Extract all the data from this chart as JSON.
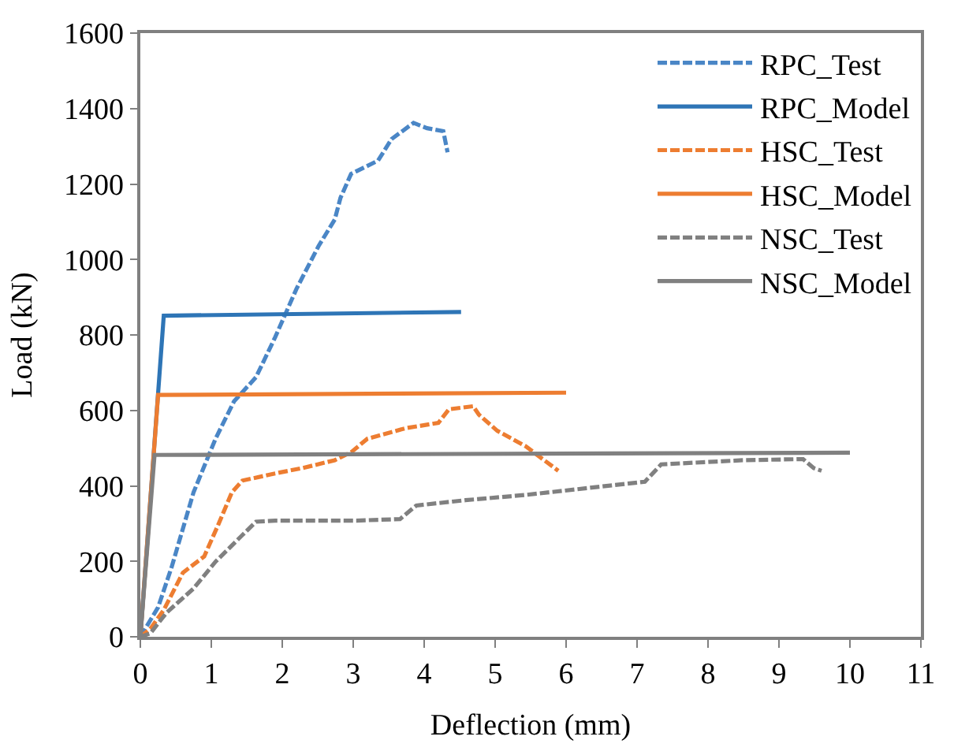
{
  "chart_data": {
    "type": "line",
    "xlabel": "Deflection (mm)",
    "ylabel": "Load (kN)",
    "xlim": [
      0,
      11
    ],
    "xticks": [
      0,
      1,
      2,
      3,
      4,
      5,
      6,
      7,
      8,
      9,
      10,
      11
    ],
    "ylim": [
      0,
      1600
    ],
    "yticks": [
      0,
      200,
      400,
      600,
      800,
      1000,
      1200,
      1400,
      1600
    ],
    "legend": "top right",
    "marker": "none",
    "series": [
      {
        "name": "RPC_Test",
        "color": "#4a86c6",
        "line_style": "dashed",
        "x": [
          0,
          0.25,
          0.44,
          0.75,
          1.06,
          1.32,
          1.63,
          1.9,
          2.2,
          2.51,
          2.74,
          2.82,
          2.97,
          3.35,
          3.54,
          3.85,
          4.04,
          4.27,
          4.33
        ],
        "values": [
          0,
          78,
          184,
          383,
          525,
          624,
          688,
          794,
          922,
          1035,
          1106,
          1163,
          1227,
          1262,
          1319,
          1362,
          1348,
          1340,
          1284
        ]
      },
      {
        "name": "RPC_Model",
        "color": "#2e75b6",
        "line_style": "solid",
        "x": [
          0,
          0.33,
          4.52
        ],
        "values": [
          0,
          851,
          861
        ]
      },
      {
        "name": "HSC_Test",
        "color": "#ed7d31",
        "line_style": "dashed",
        "x": [
          0,
          0.14,
          0.33,
          0.6,
          0.9,
          1.1,
          1.29,
          1.44,
          1.9,
          2.28,
          2.74,
          2.97,
          3.2,
          3.74,
          4.2,
          4.35,
          4.69,
          4.77,
          5.03,
          5.43,
          5.89
        ],
        "values": [
          0,
          21,
          71,
          170,
          213,
          298,
          383,
          414,
          433,
          447,
          468,
          489,
          525,
          553,
          567,
          603,
          611,
          589,
          546,
          505,
          440
        ]
      },
      {
        "name": "HSC_Model",
        "color": "#ed7d31",
        "line_style": "solid",
        "x": [
          0,
          0.25,
          6.0
        ],
        "values": [
          0,
          641,
          647
        ]
      },
      {
        "name": "NSC_Test",
        "color": "#808080",
        "line_style": "dashed",
        "x": [
          0,
          0.14,
          0.37,
          0.75,
          1.06,
          1.44,
          1.63,
          1.9,
          3.05,
          3.66,
          3.89,
          4.58,
          5.43,
          7.11,
          7.34,
          8.49,
          9.34,
          9.49,
          9.6
        ],
        "values": [
          0,
          9,
          64,
          128,
          199,
          270,
          305,
          308,
          308,
          312,
          348,
          362,
          376,
          411,
          457,
          468,
          471,
          447,
          440
        ]
      },
      {
        "name": "NSC_Model",
        "color": "#808080",
        "line_style": "solid",
        "x": [
          0,
          0.2,
          10
        ],
        "values": [
          0,
          482,
          488
        ]
      }
    ]
  }
}
